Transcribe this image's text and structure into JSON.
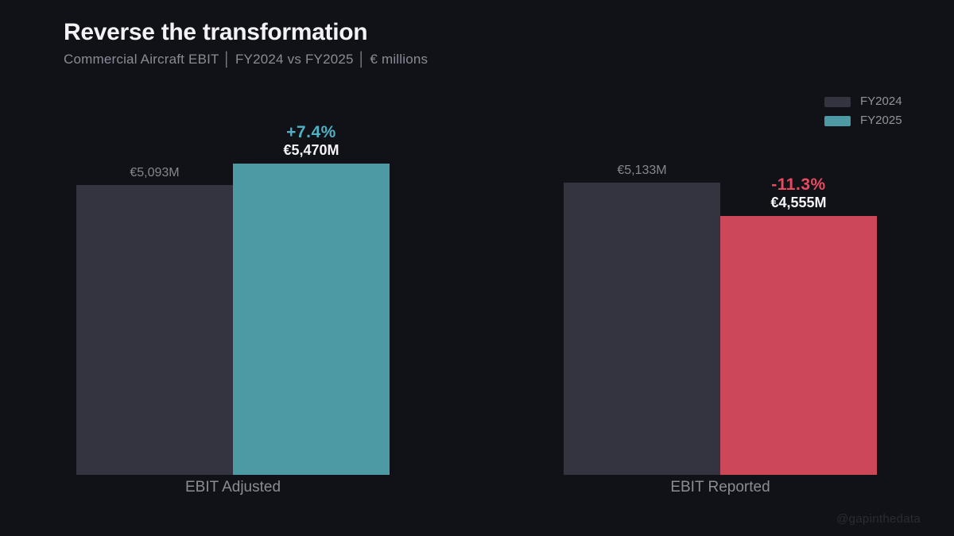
{
  "header": {
    "title": "Reverse the transformation",
    "subtitle": "Commercial Aircraft EBIT │ FY2024 vs FY2025 │ € millions"
  },
  "legend": {
    "items": [
      {
        "label": "FY2024",
        "color": "#333440"
      },
      {
        "label": "FY2025",
        "color": "#4d9aa4"
      }
    ]
  },
  "chart_data": {
    "type": "bar",
    "title": "Reverse the transformation",
    "subtitle": "Commercial Aircraft EBIT │ FY2024 vs FY2025 │ € millions",
    "units": "€ millions",
    "categories": [
      "EBIT Adjusted",
      "EBIT Reported"
    ],
    "series": [
      {
        "name": "FY2024",
        "values": [
          5093,
          5133
        ],
        "colors": [
          "#333440",
          "#333440"
        ],
        "value_labels": [
          "€5,093M",
          "€5,133M"
        ],
        "label_color": "#85868f"
      },
      {
        "name": "FY2025",
        "values": [
          5470,
          4555
        ],
        "colors": [
          "#4d9aa4",
          "#cc4757"
        ],
        "value_labels": [
          "€5,470M",
          "€4,555M"
        ],
        "delta_labels": [
          "+7.4%",
          "-11.3%"
        ],
        "delta_colors": [
          "#4fb1c3",
          "#ea4a60"
        ],
        "label_color": "#f5f5f7"
      }
    ],
    "ylim": [
      0,
      5470
    ],
    "grid": false,
    "axis_lines": false,
    "legend_position": "top-right"
  },
  "watermark": "@gapinthedata",
  "colors": {
    "background": "#111218",
    "title": "#f3f3f6",
    "subtitle": "#8a8b95",
    "category_label": "#8b8c96",
    "fy2024_bar": "#333440",
    "fy2025_adjusted_bar": "#4d9aa4",
    "fy2025_reported_bar": "#cc4757",
    "positive_delta": "#4fb1c3",
    "negative_delta": "#ea4a60"
  }
}
